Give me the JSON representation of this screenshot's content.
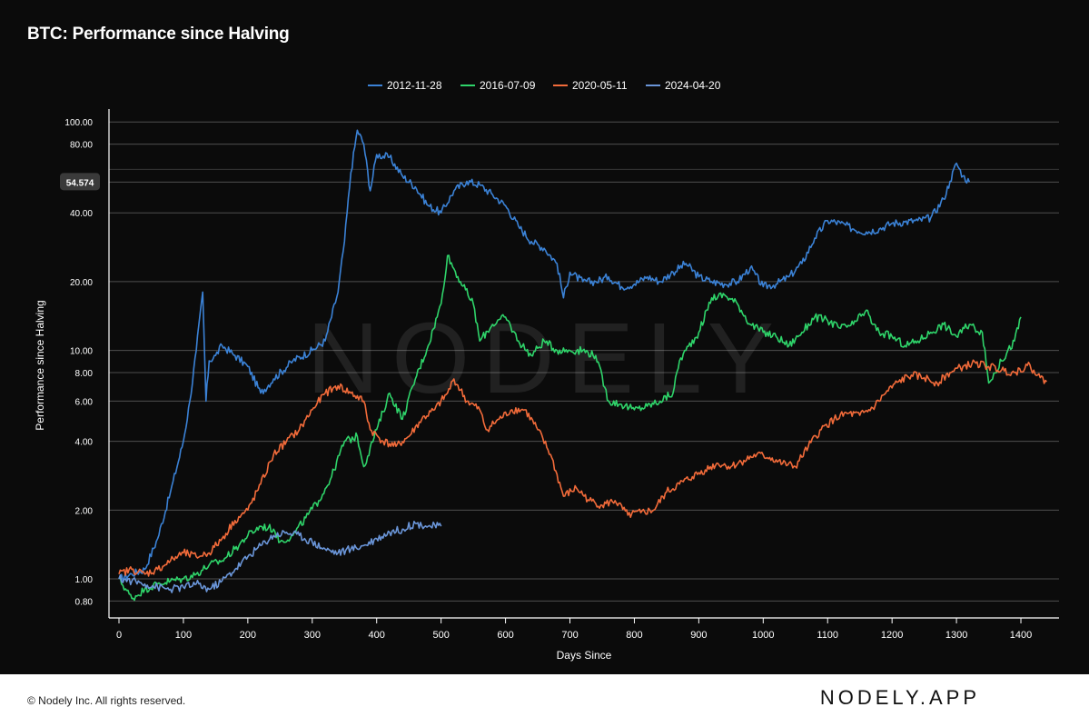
{
  "header": {
    "title": "BTC: Performance since Halving"
  },
  "watermark": "NODELY",
  "footer": {
    "copyright": "© Nodely Inc. All rights reserved.",
    "brand": "NODELY.APP"
  },
  "chart_data": {
    "type": "line",
    "title": "BTC: Performance since Halving",
    "xlabel": "Days Since",
    "ylabel": "Performance since Halving",
    "y_scale": "log",
    "xlim": [
      -10,
      1460
    ],
    "ylim": [
      0.7,
      120
    ],
    "x_ticks": [
      0,
      100,
      200,
      300,
      400,
      500,
      600,
      700,
      800,
      900,
      1000,
      1100,
      1200,
      1300,
      1400
    ],
    "y_ticks": [
      {
        "value": 0.8,
        "label": "0.80"
      },
      {
        "value": 1,
        "label": "1.00"
      },
      {
        "value": 2,
        "label": "2.00"
      },
      {
        "value": 4,
        "label": "4.00"
      },
      {
        "value": 6,
        "label": "6.00"
      },
      {
        "value": 8,
        "label": "8.00"
      },
      {
        "value": 10,
        "label": "10.00"
      },
      {
        "value": 20,
        "label": "20.00"
      },
      {
        "value": 40,
        "label": "40.00"
      },
      {
        "value": 80,
        "label": "80.00"
      },
      {
        "value": 100,
        "label": "100.00"
      }
    ],
    "current_value_marker": {
      "value": 54.574,
      "label": "54.574"
    },
    "grid": true,
    "legend_position": "top-center",
    "series": [
      {
        "name": "2012-11-28",
        "color": "#3b82d6",
        "points": [
          [
            0,
            1.0
          ],
          [
            20,
            1.05
          ],
          [
            40,
            1.1
          ],
          [
            60,
            1.5
          ],
          [
            80,
            2.4
          ],
          [
            100,
            4.0
          ],
          [
            110,
            6.0
          ],
          [
            120,
            10.0
          ],
          [
            130,
            18.0
          ],
          [
            135,
            6.0
          ],
          [
            140,
            9.0
          ],
          [
            150,
            9.5
          ],
          [
            160,
            10.5
          ],
          [
            180,
            9.5
          ],
          [
            200,
            8.5
          ],
          [
            220,
            6.5
          ],
          [
            240,
            7.5
          ],
          [
            270,
            9.0
          ],
          [
            300,
            10.0
          ],
          [
            320,
            11.0
          ],
          [
            340,
            18.0
          ],
          [
            350,
            30.0
          ],
          [
            360,
            60.0
          ],
          [
            370,
            92.0
          ],
          [
            380,
            80.0
          ],
          [
            390,
            50.0
          ],
          [
            400,
            72.0
          ],
          [
            420,
            70.0
          ],
          [
            440,
            58.0
          ],
          [
            460,
            52.0
          ],
          [
            480,
            43.0
          ],
          [
            500,
            40.0
          ],
          [
            520,
            50.0
          ],
          [
            540,
            55.0
          ],
          [
            560,
            53.0
          ],
          [
            580,
            48.0
          ],
          [
            600,
            43.0
          ],
          [
            620,
            35.0
          ],
          [
            640,
            30.0
          ],
          [
            660,
            28.0
          ],
          [
            680,
            24.0
          ],
          [
            690,
            17.0
          ],
          [
            700,
            22.0
          ],
          [
            720,
            20.0
          ],
          [
            740,
            20.0
          ],
          [
            760,
            21.0
          ],
          [
            780,
            19.0
          ],
          [
            800,
            19.5
          ],
          [
            820,
            21.0
          ],
          [
            840,
            20.0
          ],
          [
            860,
            22.0
          ],
          [
            880,
            24.0
          ],
          [
            900,
            21.0
          ],
          [
            920,
            20.0
          ],
          [
            940,
            19.5
          ],
          [
            960,
            20.0
          ],
          [
            980,
            23.0
          ],
          [
            1000,
            19.0
          ],
          [
            1020,
            19.5
          ],
          [
            1040,
            21.0
          ],
          [
            1060,
            24.0
          ],
          [
            1080,
            31.0
          ],
          [
            1100,
            37.0
          ],
          [
            1120,
            36.0
          ],
          [
            1140,
            34.0
          ],
          [
            1160,
            33.0
          ],
          [
            1180,
            34.0
          ],
          [
            1200,
            36.0
          ],
          [
            1220,
            36.5
          ],
          [
            1240,
            37.0
          ],
          [
            1260,
            38.0
          ],
          [
            1280,
            46.0
          ],
          [
            1290,
            55.0
          ],
          [
            1300,
            66.0
          ],
          [
            1310,
            58.0
          ],
          [
            1320,
            54.6
          ]
        ]
      },
      {
        "name": "2016-07-09",
        "color": "#2fd46a",
        "points": [
          [
            0,
            1.0
          ],
          [
            20,
            0.82
          ],
          [
            40,
            0.9
          ],
          [
            60,
            0.95
          ],
          [
            80,
            0.98
          ],
          [
            100,
            1.0
          ],
          [
            120,
            1.05
          ],
          [
            140,
            1.15
          ],
          [
            160,
            1.2
          ],
          [
            180,
            1.35
          ],
          [
            200,
            1.55
          ],
          [
            220,
            1.7
          ],
          [
            240,
            1.65
          ],
          [
            250,
            1.45
          ],
          [
            270,
            1.55
          ],
          [
            290,
            1.85
          ],
          [
            310,
            2.2
          ],
          [
            330,
            2.8
          ],
          [
            350,
            4.0
          ],
          [
            370,
            4.2
          ],
          [
            380,
            3.1
          ],
          [
            400,
            4.5
          ],
          [
            420,
            6.5
          ],
          [
            440,
            5.0
          ],
          [
            460,
            7.5
          ],
          [
            480,
            10.5
          ],
          [
            500,
            16.0
          ],
          [
            510,
            26.0
          ],
          [
            530,
            20.0
          ],
          [
            550,
            16.0
          ],
          [
            560,
            11.0
          ],
          [
            580,
            13.0
          ],
          [
            600,
            14.0
          ],
          [
            620,
            11.0
          ],
          [
            640,
            9.5
          ],
          [
            660,
            11.0
          ],
          [
            680,
            10.0
          ],
          [
            700,
            10.0
          ],
          [
            720,
            10.0
          ],
          [
            740,
            9.5
          ],
          [
            760,
            6.0
          ],
          [
            780,
            5.8
          ],
          [
            800,
            5.5
          ],
          [
            820,
            5.7
          ],
          [
            840,
            6.0
          ],
          [
            860,
            6.5
          ],
          [
            870,
            9.0
          ],
          [
            880,
            10.0
          ],
          [
            900,
            12.0
          ],
          [
            920,
            17.0
          ],
          [
            940,
            17.5
          ],
          [
            960,
            16.0
          ],
          [
            980,
            13.0
          ],
          [
            1000,
            12.0
          ],
          [
            1020,
            11.5
          ],
          [
            1040,
            10.5
          ],
          [
            1060,
            12.0
          ],
          [
            1080,
            14.0
          ],
          [
            1100,
            13.5
          ],
          [
            1120,
            12.5
          ],
          [
            1140,
            13.0
          ],
          [
            1160,
            15.0
          ],
          [
            1170,
            13.0
          ],
          [
            1180,
            12.0
          ],
          [
            1200,
            11.5
          ],
          [
            1220,
            10.5
          ],
          [
            1240,
            11.0
          ],
          [
            1260,
            12.0
          ],
          [
            1280,
            13.0
          ],
          [
            1300,
            11.5
          ],
          [
            1320,
            13.0
          ],
          [
            1340,
            12.0
          ],
          [
            1350,
            7.2
          ],
          [
            1370,
            9.0
          ],
          [
            1390,
            11.0
          ],
          [
            1400,
            14.0
          ]
        ]
      },
      {
        "name": "2020-05-11",
        "color": "#f26b3a",
        "points": [
          [
            0,
            1.05
          ],
          [
            20,
            1.1
          ],
          [
            40,
            1.05
          ],
          [
            60,
            1.1
          ],
          [
            80,
            1.2
          ],
          [
            100,
            1.3
          ],
          [
            120,
            1.25
          ],
          [
            140,
            1.3
          ],
          [
            160,
            1.5
          ],
          [
            180,
            1.8
          ],
          [
            200,
            2.0
          ],
          [
            220,
            2.6
          ],
          [
            240,
            3.5
          ],
          [
            260,
            4.0
          ],
          [
            280,
            4.5
          ],
          [
            300,
            5.5
          ],
          [
            320,
            6.5
          ],
          [
            340,
            7.0
          ],
          [
            360,
            6.5
          ],
          [
            380,
            6.0
          ],
          [
            390,
            4.5
          ],
          [
            410,
            4.0
          ],
          [
            430,
            3.8
          ],
          [
            450,
            4.2
          ],
          [
            470,
            5.0
          ],
          [
            490,
            5.5
          ],
          [
            510,
            6.5
          ],
          [
            520,
            7.5
          ],
          [
            540,
            6.0
          ],
          [
            560,
            5.5
          ],
          [
            570,
            4.5
          ],
          [
            590,
            5.0
          ],
          [
            610,
            5.5
          ],
          [
            630,
            5.5
          ],
          [
            650,
            4.5
          ],
          [
            670,
            3.5
          ],
          [
            690,
            2.3
          ],
          [
            710,
            2.5
          ],
          [
            730,
            2.2
          ],
          [
            750,
            2.1
          ],
          [
            770,
            2.2
          ],
          [
            790,
            1.9
          ],
          [
            810,
            1.95
          ],
          [
            830,
            2.0
          ],
          [
            850,
            2.4
          ],
          [
            870,
            2.6
          ],
          [
            890,
            2.8
          ],
          [
            910,
            3.0
          ],
          [
            930,
            3.2
          ],
          [
            950,
            3.1
          ],
          [
            970,
            3.3
          ],
          [
            990,
            3.5
          ],
          [
            1010,
            3.4
          ],
          [
            1030,
            3.2
          ],
          [
            1050,
            3.1
          ],
          [
            1070,
            3.8
          ],
          [
            1090,
            4.5
          ],
          [
            1110,
            5.0
          ],
          [
            1130,
            5.3
          ],
          [
            1150,
            5.2
          ],
          [
            1170,
            5.6
          ],
          [
            1190,
            6.5
          ],
          [
            1210,
            7.3
          ],
          [
            1230,
            7.8
          ],
          [
            1250,
            7.6
          ],
          [
            1270,
            7.2
          ],
          [
            1290,
            8.0
          ],
          [
            1310,
            8.5
          ],
          [
            1330,
            8.8
          ],
          [
            1350,
            8.5
          ],
          [
            1370,
            8.2
          ],
          [
            1390,
            8.0
          ],
          [
            1410,
            8.6
          ],
          [
            1420,
            8.2
          ],
          [
            1430,
            7.6
          ],
          [
            1440,
            7.3
          ]
        ]
      },
      {
        "name": "2024-04-20",
        "color": "#6a95d8",
        "points": [
          [
            0,
            1.0
          ],
          [
            20,
            0.98
          ],
          [
            40,
            0.95
          ],
          [
            60,
            0.92
          ],
          [
            80,
            0.9
          ],
          [
            100,
            0.92
          ],
          [
            120,
            0.95
          ],
          [
            140,
            0.9
          ],
          [
            160,
            0.98
          ],
          [
            180,
            1.1
          ],
          [
            200,
            1.25
          ],
          [
            220,
            1.4
          ],
          [
            240,
            1.55
          ],
          [
            260,
            1.6
          ],
          [
            280,
            1.55
          ],
          [
            300,
            1.45
          ],
          [
            320,
            1.35
          ],
          [
            340,
            1.3
          ],
          [
            360,
            1.35
          ],
          [
            380,
            1.4
          ],
          [
            400,
            1.5
          ],
          [
            420,
            1.6
          ],
          [
            440,
            1.65
          ],
          [
            460,
            1.75
          ],
          [
            480,
            1.7
          ],
          [
            500,
            1.7
          ]
        ]
      }
    ]
  }
}
